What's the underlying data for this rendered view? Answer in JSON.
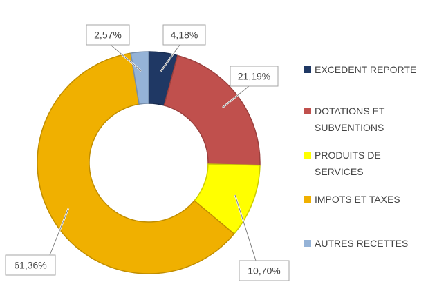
{
  "chart_data": {
    "type": "donut",
    "title": "",
    "legend_position": "right",
    "series": [
      {
        "name": "EXCEDENT REPORTE",
        "legend_lines": [
          "EXCEDENT REPORTE"
        ],
        "value": 4.18,
        "label": "4,18%",
        "color": "#1F3864"
      },
      {
        "name": "DOTATIONS ET SUBVENTIONS",
        "legend_lines": [
          "DOTATIONS ET",
          "SUBVENTIONS"
        ],
        "value": 21.19,
        "label": "21,19%",
        "color": "#C0504D"
      },
      {
        "name": "PRODUITS DE SERVICES",
        "legend_lines": [
          "PRODUITS DE",
          "SERVICES"
        ],
        "value": 10.7,
        "label": "10,70%",
        "color": "#FFFF00"
      },
      {
        "name": "IMPOTS ET TAXES",
        "legend_lines": [
          "IMPOTS ET TAXES"
        ],
        "value": 61.36,
        "label": "61,36%",
        "color": "#F0B000"
      },
      {
        "name": "AUTRES RECETTES",
        "legend_lines": [
          "AUTRES RECETTES"
        ],
        "value": 2.57,
        "label": "2,57%",
        "color": "#95B3D7"
      }
    ]
  }
}
